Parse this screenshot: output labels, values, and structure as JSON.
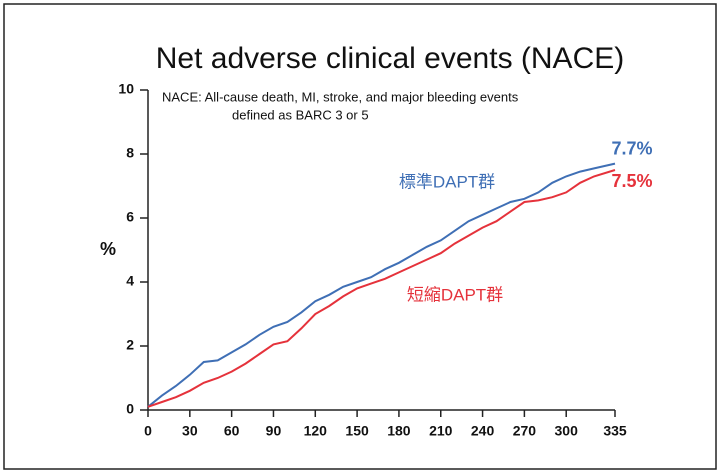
{
  "chart_data": {
    "type": "line",
    "title": "Net adverse clinical events (NACE)",
    "note": [
      "NACE: All-cause death, MI, stroke, and major bleeding events",
      "defined as BARC 3 or 5"
    ],
    "ylabel": "%",
    "x": [
      0,
      10,
      20,
      30,
      40,
      50,
      60,
      70,
      80,
      90,
      100,
      110,
      120,
      130,
      140,
      150,
      160,
      170,
      180,
      190,
      200,
      210,
      220,
      230,
      240,
      250,
      260,
      270,
      280,
      290,
      300,
      310,
      320,
      335
    ],
    "series": [
      {
        "name": "標準DAPT群",
        "color": "#3f6fb5",
        "end_label": "7.7%",
        "values": [
          0.1,
          0.45,
          0.75,
          1.1,
          1.5,
          1.55,
          1.8,
          2.05,
          2.35,
          2.6,
          2.75,
          3.05,
          3.4,
          3.6,
          3.85,
          4.0,
          4.15,
          4.4,
          4.6,
          4.85,
          5.1,
          5.3,
          5.6,
          5.9,
          6.1,
          6.3,
          6.5,
          6.6,
          6.8,
          7.1,
          7.3,
          7.45,
          7.55,
          7.7
        ]
      },
      {
        "name": "短縮DAPT群",
        "color": "#e5323b",
        "end_label": "7.5%",
        "values": [
          0.1,
          0.25,
          0.4,
          0.6,
          0.85,
          1.0,
          1.2,
          1.45,
          1.75,
          2.05,
          2.15,
          2.55,
          3.0,
          3.25,
          3.55,
          3.8,
          3.95,
          4.1,
          4.3,
          4.5,
          4.7,
          4.9,
          5.2,
          5.45,
          5.7,
          5.9,
          6.2,
          6.5,
          6.55,
          6.65,
          6.8,
          7.1,
          7.3,
          7.5
        ]
      }
    ],
    "xlim": [
      0,
      335
    ],
    "xticks": [
      0,
      30,
      60,
      90,
      120,
      150,
      180,
      210,
      240,
      270,
      300,
      335
    ],
    "ylim": [
      0,
      10
    ],
    "yticks": [
      0,
      2,
      4,
      6,
      8,
      10
    ]
  }
}
